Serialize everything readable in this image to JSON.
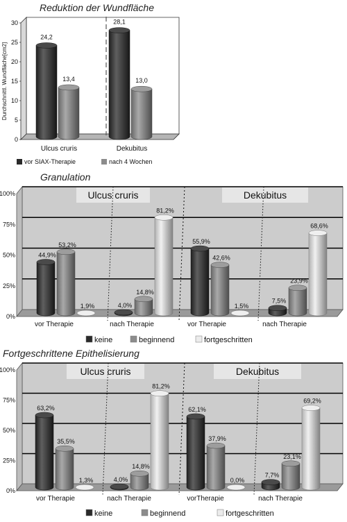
{
  "chart_data": [
    {
      "type": "bar",
      "title": "Reduktion der Wundfläche",
      "ylabel": "Durchschnittl. Wundfläche[cm2]",
      "xlabel": "",
      "ylim": [
        0,
        30
      ],
      "yticks": [
        "0",
        "5",
        "10",
        "15",
        "20",
        "25",
        "30"
      ],
      "categories": [
        "Ulcus cruris",
        "Dekubitus"
      ],
      "series": [
        {
          "name": "vor SIAX-Therapie",
          "values": [
            24.2,
            28.1
          ],
          "labels": [
            "24,2",
            "28,1"
          ],
          "color": "#2a2a2a"
        },
        {
          "name": "nach 4 Wochen",
          "values": [
            13.4,
            13.0
          ],
          "labels": [
            "13,4",
            "13,0"
          ],
          "color": "#8c8c8c"
        }
      ],
      "grid": false,
      "legend": "bottom"
    },
    {
      "type": "bar",
      "title": "Granulation",
      "ylim": [
        0,
        100
      ],
      "yticks": [
        "0%",
        "25%",
        "50%",
        "75%",
        "100%"
      ],
      "groups": [
        "Ulcus cruris",
        "Dekubitus"
      ],
      "categories": [
        "vor Therapie",
        "nach Therapie",
        "vor Therapie",
        "nach Therapie"
      ],
      "series": [
        {
          "name": "keine",
          "values": [
            44.9,
            4.0,
            55.9,
            7.5
          ],
          "labels": [
            "44,9%",
            "4,0%",
            "55,9%",
            "7,5%"
          ],
          "color": "#2a2a2a"
        },
        {
          "name": "beginnend",
          "values": [
            53.2,
            14.8,
            42.6,
            23.9
          ],
          "labels": [
            "53,2%",
            "14,8%",
            "42,6%",
            "23,9%"
          ],
          "color": "#8c8c8c"
        },
        {
          "name": "fortgeschritten",
          "values": [
            1.9,
            81.2,
            1.5,
            68.6
          ],
          "labels": [
            "1,9%",
            "81,2%",
            "1,5%",
            "68,6%"
          ],
          "color": "#ececec"
        }
      ],
      "grid": true,
      "legend": "bottom"
    },
    {
      "type": "bar",
      "title": "Fortgeschrittene Epithelisierung",
      "ylim": [
        0,
        100
      ],
      "yticks": [
        "0%",
        "25%",
        "50%",
        "75%",
        "100%"
      ],
      "groups": [
        "Ulcus cruris",
        "Dekubitus"
      ],
      "categories": [
        "vor Therapie",
        "nach Therapie",
        "vorTherapie",
        "nach Therapie"
      ],
      "series": [
        {
          "name": "keine",
          "values": [
            63.2,
            4.0,
            62.1,
            7.7
          ],
          "labels": [
            "63,2%",
            "4,0%",
            "62,1%",
            "7,7%"
          ],
          "color": "#2a2a2a"
        },
        {
          "name": "beginnend",
          "values": [
            35.5,
            14.8,
            37.9,
            23.1
          ],
          "labels": [
            "35,5%",
            "14,8%",
            "37,9%",
            "23,1%"
          ],
          "color": "#8c8c8c"
        },
        {
          "name": "fortgeschritten",
          "values": [
            1.3,
            81.2,
            0.0,
            69.2
          ],
          "labels": [
            "1,3%",
            "81,2%",
            "0,0%",
            "69,2%"
          ],
          "color": "#ececec"
        }
      ],
      "grid": true,
      "legend": "bottom"
    }
  ]
}
